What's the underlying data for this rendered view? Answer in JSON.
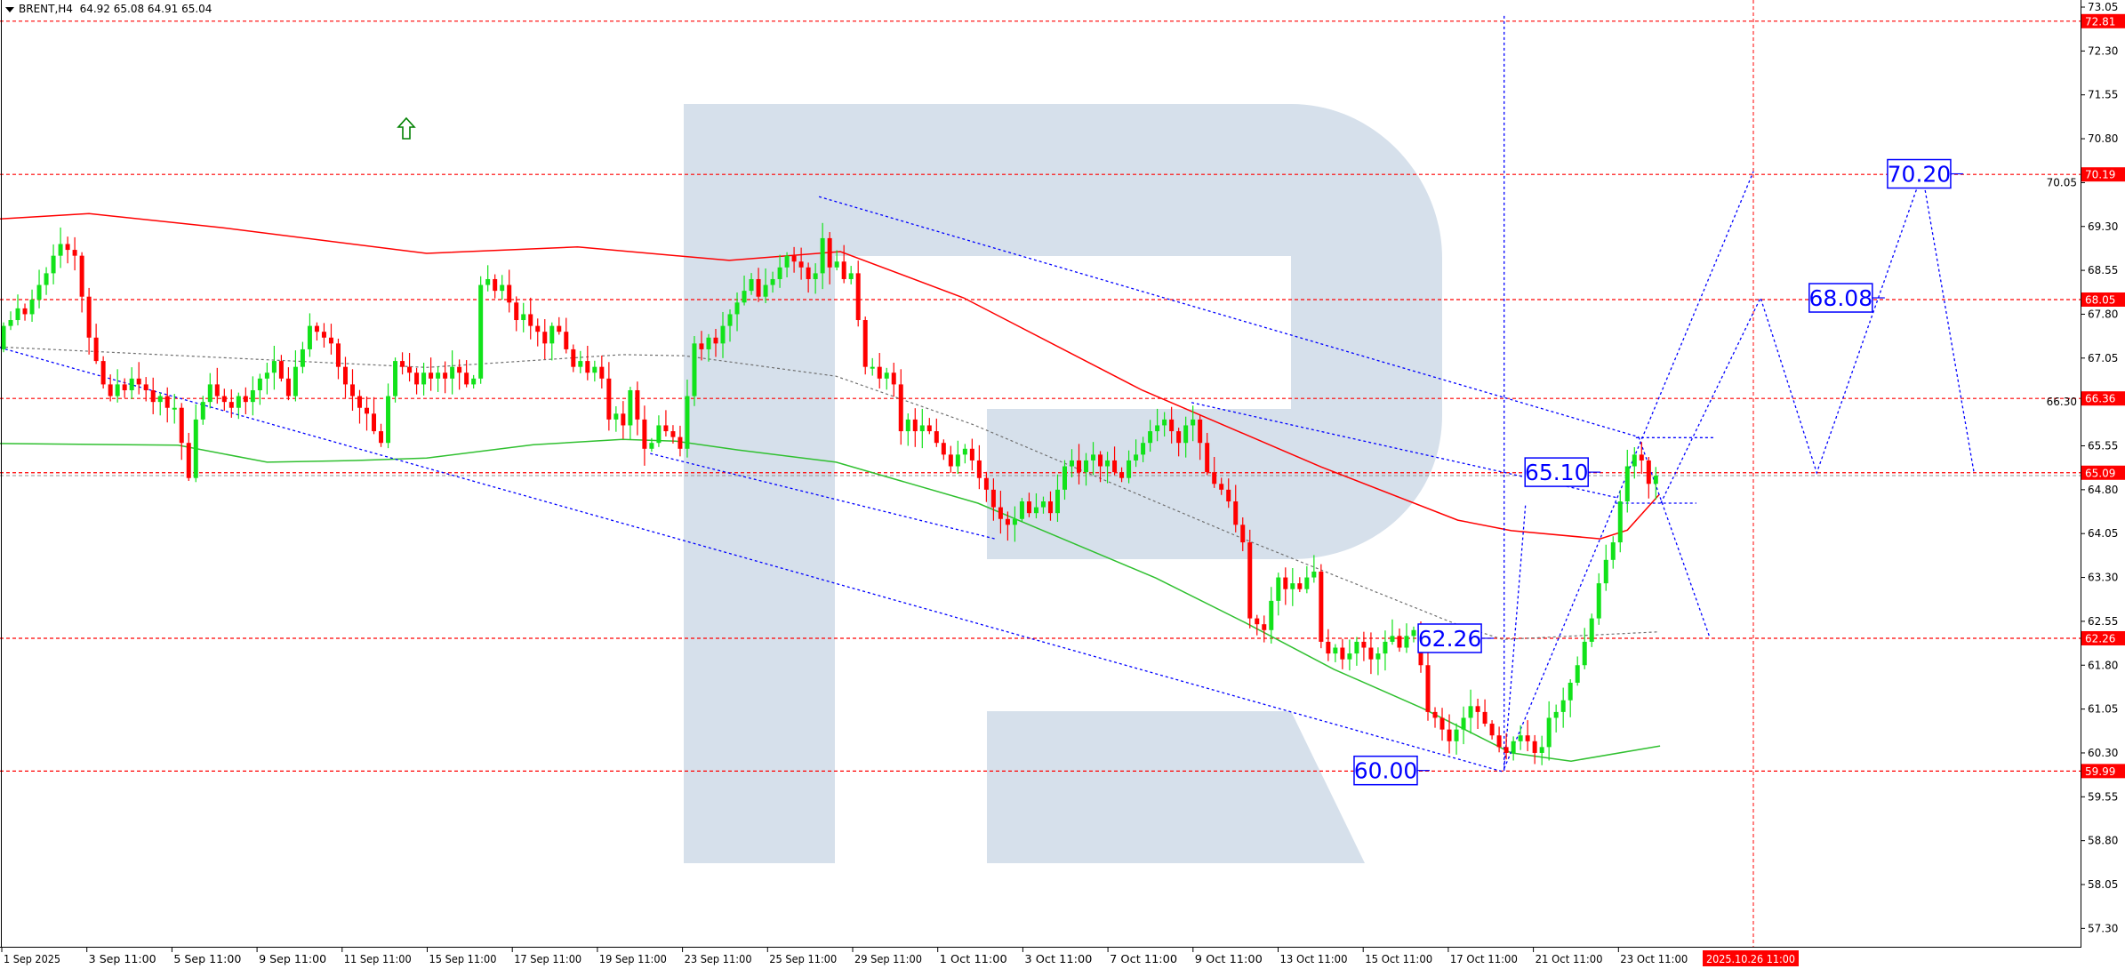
{
  "header": {
    "symbol_timeframe": "BRENT,H4",
    "ohlc": "64.92 65.08 64.91 65.04"
  },
  "colors": {
    "bull": "#12e21a",
    "bear": "#ff0000",
    "level": "#ff0000",
    "analysis": "#0000ff",
    "ma_long": "#ff0000",
    "ma_short": "#30c030",
    "midline": "#707070",
    "watermark": "#d6e0eb",
    "arrow": "#008000",
    "label_bg": "#ff0000"
  },
  "icons": {
    "signal": "arrow-up-outline-icon",
    "menu": "triangle-down-icon"
  },
  "chart_data": {
    "type": "candlestick",
    "title": "BRENT,H4",
    "first_open": 67.2,
    "closes": [
      67.6,
      67.7,
      67.9,
      67.8,
      68.05,
      68.3,
      68.5,
      68.8,
      69.0,
      68.9,
      68.8,
      68.1,
      67.4,
      67.0,
      66.6,
      66.4,
      66.6,
      66.5,
      66.7,
      66.6,
      66.5,
      66.3,
      66.4,
      66.2,
      66.2,
      65.6,
      65.0,
      66.0,
      66.3,
      66.6,
      66.4,
      66.3,
      66.2,
      66.4,
      66.3,
      66.5,
      66.7,
      66.8,
      67.0,
      66.7,
      66.4,
      66.9,
      67.2,
      67.6,
      67.5,
      67.4,
      67.3,
      66.9,
      66.6,
      66.4,
      66.2,
      66.1,
      65.8,
      65.6,
      66.4,
      67.0,
      66.9,
      66.8,
      66.6,
      66.8,
      66.7,
      66.8,
      66.7,
      66.9,
      66.8,
      66.6,
      66.7,
      68.3,
      68.4,
      68.2,
      68.3,
      68.0,
      67.7,
      67.8,
      67.6,
      67.5,
      67.3,
      67.6,
      67.5,
      67.2,
      66.9,
      67.0,
      66.8,
      66.9,
      66.7,
      66.0,
      66.1,
      65.9,
      66.5,
      66.0,
      65.5,
      65.6,
      65.9,
      65.8,
      65.7,
      65.5,
      66.4,
      67.3,
      67.2,
      67.4,
      67.3,
      67.6,
      67.8,
      68.0,
      68.2,
      68.4,
      68.1,
      68.3,
      68.4,
      68.6,
      68.8,
      68.7,
      68.6,
      68.4,
      68.5,
      69.1,
      68.6,
      68.7,
      68.4,
      68.5,
      67.7,
      66.9,
      66.9,
      66.7,
      66.8,
      66.6,
      65.8,
      66.0,
      65.8,
      65.9,
      65.8,
      65.6,
      65.4,
      65.2,
      65.4,
      65.5,
      65.3,
      65.0,
      64.8,
      64.5,
      64.3,
      64.2,
      64.3,
      64.6,
      64.4,
      64.5,
      64.6,
      64.4,
      64.8,
      65.2,
      65.3,
      65.1,
      65.3,
      65.4,
      65.2,
      65.3,
      65.1,
      65.0,
      65.3,
      65.4,
      65.6,
      65.8,
      65.9,
      66.0,
      65.8,
      65.6,
      65.9,
      66.0,
      65.6,
      65.1,
      64.9,
      64.8,
      64.6,
      64.2,
      63.9,
      62.6,
      62.5,
      62.4,
      62.9,
      63.3,
      63.1,
      63.2,
      63.1,
      63.3,
      63.4,
      62.2,
      62.0,
      62.1,
      61.9,
      62.0,
      62.2,
      62.1,
      61.9,
      62.0,
      62.2,
      62.3,
      62.1,
      62.3,
      62.4,
      61.8,
      61.0,
      60.9,
      60.7,
      60.5,
      60.7,
      60.9,
      61.1,
      61.0,
      60.8,
      60.6,
      60.4,
      60.3,
      60.5,
      60.6,
      60.5,
      60.3,
      60.4,
      60.9,
      61.0,
      61.2,
      61.5,
      61.8,
      62.2,
      62.6,
      63.2,
      63.6,
      63.9,
      64.6,
      65.2,
      65.4,
      65.3,
      64.9,
      65.04
    ],
    "price_axis": {
      "range": [
        56.9,
        73.17
      ],
      "ticks": [
        "73.05",
        "72.30",
        "71.55",
        "70.80",
        "70.05",
        "69.30",
        "68.55",
        "67.80",
        "67.05",
        "66.30",
        "65.55",
        "64.80",
        "64.05",
        "63.30",
        "62.55",
        "61.80",
        "61.05",
        "60.30",
        "59.55",
        "58.80",
        "58.05",
        "57.30"
      ]
    },
    "time_axis": {
      "labels": [
        "1 Sep 2025",
        "3 Sep 11:00",
        "5 Sep 11:00",
        "9 Sep 11:00",
        "11 Sep 11:00",
        "15 Sep 11:00",
        "17 Sep 11:00",
        "19 Sep 11:00",
        "23 Sep 11:00",
        "25 Sep 11:00",
        "29 Sep 11:00",
        "1 Oct 11:00",
        "3 Oct 11:00",
        "7 Oct 11:00",
        "9 Oct 11:00",
        "13 Oct 11:00",
        "15 Oct 11:00",
        "17 Oct 11:00",
        "21 Oct 11:00",
        "23 Oct 11:00"
      ],
      "marker_label": "2025.10.26 11:00"
    },
    "levels": [
      {
        "price": 72.81,
        "label": "72.81"
      },
      {
        "price": 70.19,
        "label": "70.19"
      },
      {
        "price": 68.05,
        "label": "68.05"
      },
      {
        "price": 66.36,
        "label": "66.36"
      },
      {
        "price": 65.09,
        "label": "65.09"
      },
      {
        "price": 62.26,
        "label": "62.26"
      },
      {
        "price": 59.99,
        "label": "59.99"
      }
    ],
    "indicators": {
      "ma_long": [
        [
          -0.5,
          69.43
        ],
        [
          12,
          69.52
        ],
        [
          30.7,
          69.28
        ],
        [
          59.4,
          68.84
        ],
        [
          80.6,
          68.95
        ],
        [
          101.9,
          68.72
        ],
        [
          117.5,
          68.87
        ],
        [
          134.8,
          68.08
        ],
        [
          159.9,
          66.5
        ],
        [
          185,
          65.19
        ],
        [
          204.2,
          64.28
        ],
        [
          211.7,
          64.1
        ],
        [
          224.2,
          63.96
        ],
        [
          228,
          64.11
        ],
        [
          232.5,
          64.72
        ]
      ],
      "ma_short": [
        [
          -0.5,
          65.59
        ],
        [
          24.5,
          65.56
        ],
        [
          37,
          65.27
        ],
        [
          49.4,
          65.3
        ],
        [
          59.4,
          65.34
        ],
        [
          74.4,
          65.57
        ],
        [
          86.9,
          65.66
        ],
        [
          94.4,
          65.63
        ],
        [
          103.1,
          65.48
        ],
        [
          116.9,
          65.27
        ],
        [
          136.8,
          64.57
        ],
        [
          161.8,
          63.29
        ],
        [
          174.3,
          62.53
        ],
        [
          186.8,
          61.73
        ],
        [
          199.3,
          61.06
        ],
        [
          211.7,
          60.3
        ],
        [
          220.1,
          60.16
        ],
        [
          232.6,
          60.42
        ]
      ],
      "midline": [
        [
          -0.5,
          67.24
        ],
        [
          59.4,
          66.89
        ],
        [
          86.9,
          67.11
        ],
        [
          95.6,
          67.09
        ],
        [
          116.9,
          66.74
        ],
        [
          136.2,
          65.91
        ],
        [
          174.3,
          63.95
        ],
        [
          204.2,
          62.49
        ],
        [
          210.5,
          62.24
        ],
        [
          232.5,
          62.37
        ]
      ]
    },
    "annotations": {
      "lines": [
        [
          [
            -0.5,
            67.23
          ],
          [
            210.5,
            59.98
          ]
        ],
        [
          [
            114.5,
            69.81
          ],
          [
            229.6,
            65.7
          ]
        ],
        [
          [
            90.8,
            65.42
          ],
          [
            139.2,
            63.96
          ]
        ],
        [
          [
            166.8,
            66.29
          ],
          [
            226.7,
            64.66
          ]
        ],
        [
          [
            210.7,
            72.9
          ],
          [
            210.7,
            59.99
          ]
        ],
        [
          [
            210.7,
            60.03
          ],
          [
            245.7,
            70.24
          ]
        ],
        [
          [
            210.7,
            60.03
          ],
          [
            213.7,
            64.54
          ]
        ],
        [
          [
            229.2,
            65.69
          ],
          [
            240.4,
            65.69
          ]
        ],
        [
          [
            229.6,
            65.7
          ],
          [
            239.5,
            62.3
          ]
        ],
        [
          [
            226.3,
            64.57
          ],
          [
            237.7,
            64.57
          ]
        ],
        [
          [
            232.7,
            64.57
          ],
          [
            246.7,
            68.08
          ],
          [
            254.6,
            65.09
          ],
          [
            269.4,
            70.21
          ],
          [
            276.7,
            65.07
          ]
        ]
      ],
      "labels": [
        {
          "text": "60.00",
          "price": 60.0,
          "bar": 198.5
        },
        {
          "text": "62.26",
          "price": 62.26,
          "bar": 207.5
        },
        {
          "text": "65.10",
          "price": 65.1,
          "bar": 222.5
        },
        {
          "text": "68.08",
          "price": 68.08,
          "bar": 262.4
        },
        {
          "text": "70.20",
          "price": 70.2,
          "bar": 273.4
        }
      ],
      "forecast_marker_bar": 245.7
    }
  }
}
